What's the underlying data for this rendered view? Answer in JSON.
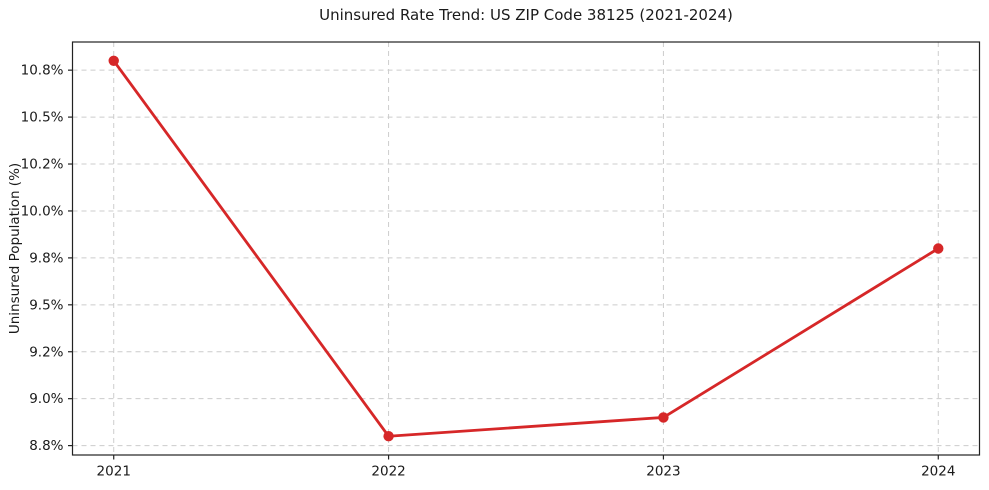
{
  "figure": {
    "title": "Uninsured Rate Trend: US ZIP Code 38125 (2021-2024)"
  },
  "chart_data": {
    "type": "line",
    "title": "Uninsured Rate Trend: US ZIP Code 38125 (2021-2024)",
    "xlabel": "",
    "ylabel": "Uninsured Population (%)",
    "x": [
      2021,
      2022,
      2023,
      2024
    ],
    "x_tick_labels": [
      "2021",
      "2022",
      "2023",
      "2024"
    ],
    "series": [
      {
        "name": "Uninsured rate",
        "values": [
          10.8,
          8.8,
          8.9,
          9.8
        ],
        "color": "#d62728",
        "marker": "circle"
      }
    ],
    "y_ticks": [
      8.75,
      9.0,
      9.25,
      9.5,
      9.75,
      10.0,
      10.25,
      10.5,
      10.75
    ],
    "y_tick_labels": [
      "8.8%",
      "9.0%",
      "9.2%",
      "9.5%",
      "9.8%",
      "10.0%",
      "10.2%",
      "10.5%",
      "10.8%"
    ],
    "xlim": [
      2020.85,
      2024.15
    ],
    "ylim": [
      8.7,
      10.9
    ],
    "grid": true,
    "grid_style": "dashed",
    "grid_color": "#cccccc",
    "spine_color": "#222222",
    "text_color": "#1a1a1a",
    "background": "#ffffff",
    "legend": "none"
  }
}
